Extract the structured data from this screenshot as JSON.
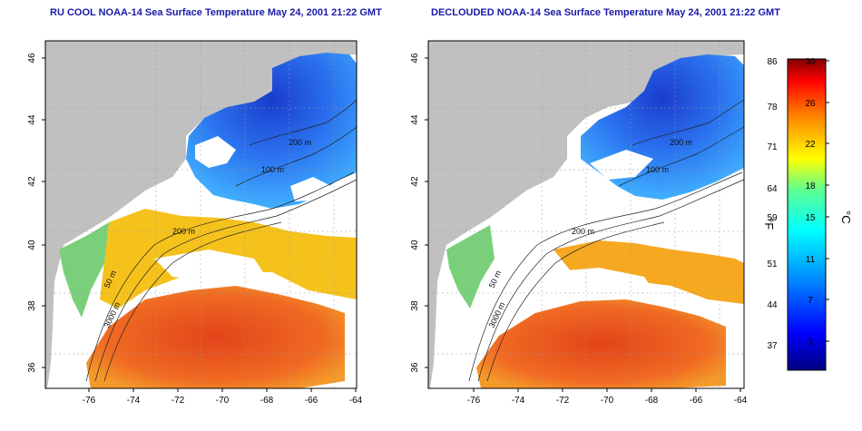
{
  "panels": [
    {
      "title": "RU COOL NOAA-14 Sea Surface Temperature May 24, 2001 21:22 GMT",
      "x_ticks": [
        "-76",
        "-74",
        "-72",
        "-70",
        "-68",
        "-66",
        "-64"
      ],
      "y_ticks": [
        "36",
        "38",
        "40",
        "42",
        "44",
        "46"
      ],
      "contour_labels": [
        "200 m",
        "100 m",
        "200 m",
        "50 m",
        "3000 m"
      ]
    },
    {
      "title": "DECLOUDED NOAA-14 Sea Surface Temperature May 24, 2001 21:22 GMT",
      "x_ticks": [
        "-76",
        "-74",
        "-72",
        "-70",
        "-68",
        "-66",
        "-64"
      ],
      "y_ticks": [
        "36",
        "38",
        "40",
        "42",
        "44",
        "46"
      ],
      "contour_labels": [
        "200 m",
        "100 m",
        "200 m",
        "50 m",
        "3000 m"
      ]
    }
  ],
  "colorbar": {
    "fahrenheit_label": "°F",
    "celsius_label": "°C",
    "fahrenheit_ticks": [
      "86",
      "78",
      "71",
      "64",
      "59",
      "51",
      "44",
      "37"
    ],
    "celsius_ticks": [
      "30",
      "26",
      "22",
      "18",
      "15",
      "11",
      "7",
      "3"
    ],
    "colors": [
      "#000080",
      "#0000ff",
      "#0080ff",
      "#00ffff",
      "#80ff80",
      "#ffff00",
      "#ff8000",
      "#ff0000",
      "#800000"
    ]
  },
  "map_colors": {
    "land": "#c0c0c0",
    "cloud": "#ffffff",
    "ocean_warm": "#e8501e",
    "ocean_mid": "#f5c21c",
    "ocean_cool": "#3aa0ff",
    "ocean_cold": "#1a3ccc",
    "coast_green": "#7ad07a"
  }
}
